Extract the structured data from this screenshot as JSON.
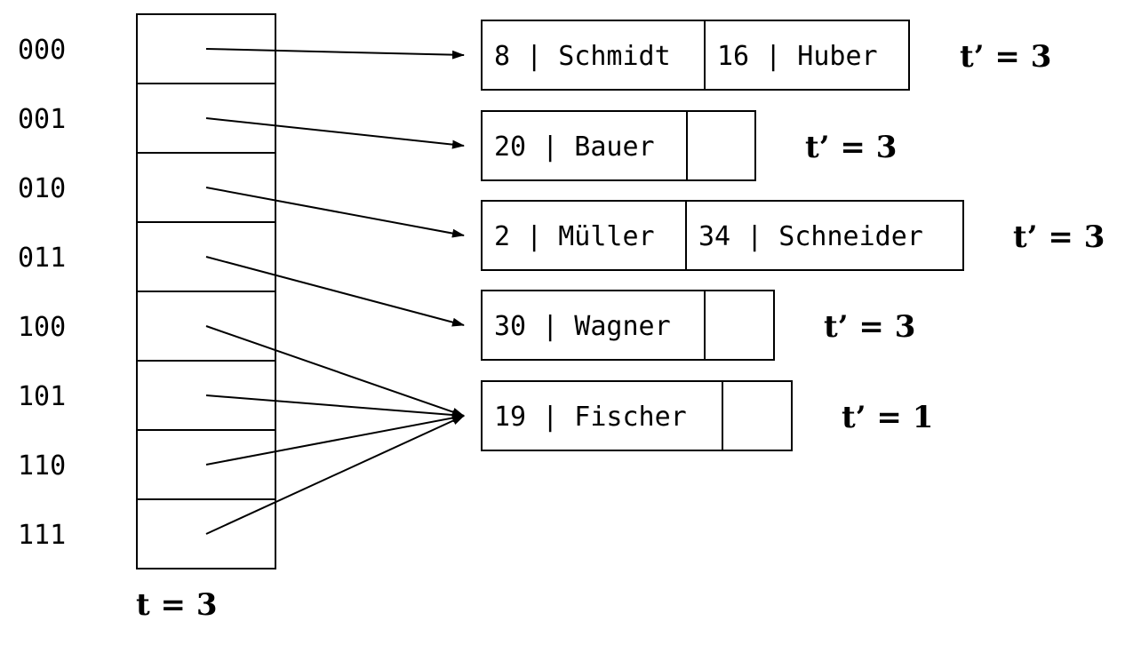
{
  "directory": {
    "global_depth_label": "t = 3",
    "entries": [
      {
        "index": "000",
        "bucket": 0
      },
      {
        "index": "001",
        "bucket": 1
      },
      {
        "index": "010",
        "bucket": 2
      },
      {
        "index": "011",
        "bucket": 3
      },
      {
        "index": "100",
        "bucket": 4
      },
      {
        "index": "101",
        "bucket": 4
      },
      {
        "index": "110",
        "bucket": 4
      },
      {
        "index": "111",
        "bucket": 4
      }
    ]
  },
  "buckets": [
    {
      "slots": [
        "8 | Schmidt",
        "16 | Huber"
      ],
      "local_depth_label": "t’ = 3"
    },
    {
      "slots": [
        "20 | Bauer",
        ""
      ],
      "local_depth_label": "t’ = 3"
    },
    {
      "slots": [
        "2 | Müller",
        "34 | Schneider"
      ],
      "local_depth_label": "t’ = 3"
    },
    {
      "slots": [
        "30 | Wagner",
        ""
      ],
      "local_depth_label": "t’ = 3"
    },
    {
      "slots": [
        "19 | Fischer",
        ""
      ],
      "local_depth_label": "t’ = 1"
    }
  ],
  "colors": {
    "line": "#000000",
    "background": "#ffffff"
  }
}
